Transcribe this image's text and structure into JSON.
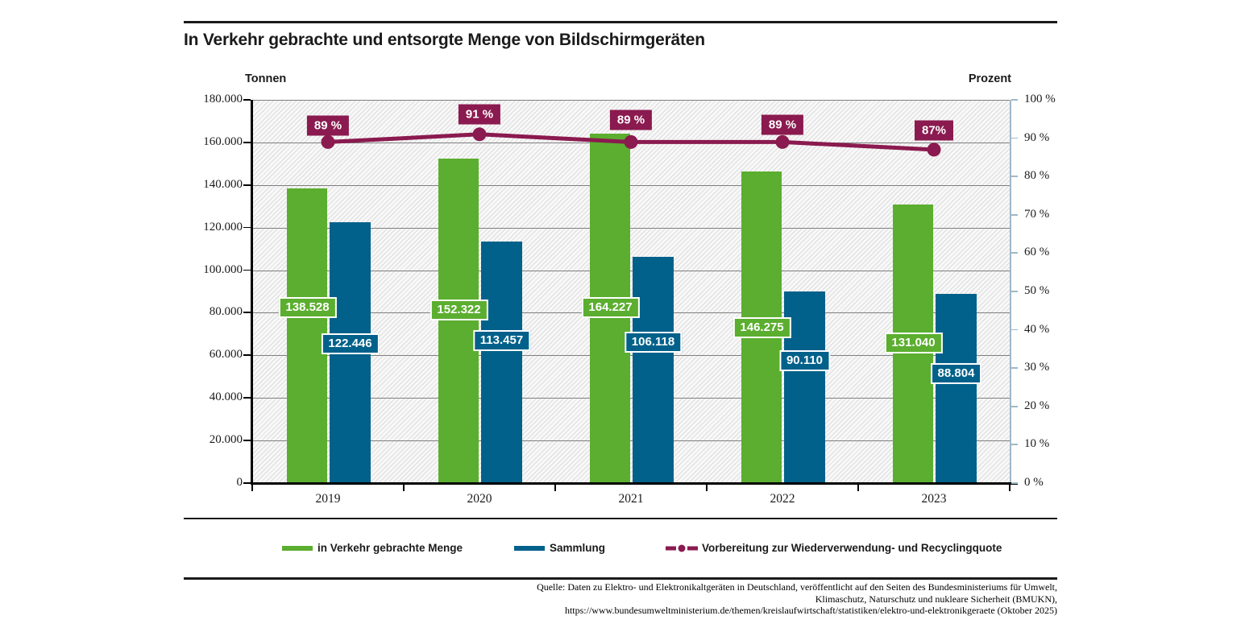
{
  "title": "In Verkehr gebrachte und entsorgte Menge von Bildschirmgeräten",
  "left_axis_title": "Tonnen",
  "right_axis_title": "Prozent",
  "colors": {
    "green": "#5BAE2F",
    "blue": "#02618A",
    "maroon": "#8A1A4F",
    "grid": "#7f7f7f",
    "right_axis": "#9FB8C8",
    "axis_black": "#000000"
  },
  "chart_data": {
    "type": "bar+line combo",
    "categories": [
      "2019",
      "2020",
      "2021",
      "2022",
      "2023"
    ],
    "series": [
      {
        "name": "in Verkehr gebrachte Menge",
        "type": "bar",
        "color_key": "green",
        "values": [
          138528,
          152322,
          164227,
          146275,
          131040
        ],
        "labels": [
          "138.528",
          "152.322",
          "164.227",
          "146.275",
          "131.040"
        ]
      },
      {
        "name": "Sammlung",
        "type": "bar",
        "color_key": "blue",
        "values": [
          122446,
          113457,
          106118,
          90110,
          88804
        ],
        "labels": [
          "122.446",
          "113.457",
          "106.118",
          "90.110",
          "88.804"
        ]
      },
      {
        "name": "Vorbereitung zur Wiederverwendung- und Recyclingquote",
        "type": "line",
        "color_key": "maroon",
        "values": [
          89,
          91,
          89,
          89,
          87
        ],
        "labels": [
          "89 %",
          "91 %",
          "89 %",
          "89 %",
          "87%"
        ]
      }
    ],
    "y_left": {
      "label": "Tonnen",
      "min": 0,
      "max": 180000,
      "step": 20000,
      "tick_values": [
        180000,
        160000,
        140000,
        120000,
        100000,
        80000,
        60000,
        40000,
        20000,
        0
      ],
      "tick_labels": [
        "180.000",
        "160.000",
        "140.000",
        "120.000",
        "100.000",
        "80.000",
        "60.000",
        "40.000",
        "20.000",
        "0"
      ]
    },
    "y_right": {
      "label": "Prozent",
      "min": 0,
      "max": 100,
      "step": 10,
      "tick_values": [
        100,
        90,
        80,
        70,
        60,
        50,
        40,
        30,
        20,
        10,
        0
      ],
      "tick_labels": [
        "100 %",
        "90 %",
        "80 %",
        "70 %",
        "60 %",
        "50 %",
        "40 %",
        "30 %",
        "20 %",
        "10 %",
        "0 %"
      ]
    },
    "grid": true,
    "legend_position": "bottom"
  },
  "legend": {
    "items": [
      {
        "label": "in Verkehr gebrachte Menge",
        "swatch": "green-rect"
      },
      {
        "label": "Sammlung",
        "swatch": "blue-rect"
      },
      {
        "label": "Vorbereitung zur Wiederverwendung- und Recyclingquote",
        "swatch": "maroon-line-dot"
      }
    ]
  },
  "source": {
    "line1": "Quelle: Daten zu Elektro- und Elektronikaltgeräten in Deutschland, veröffentlicht auf den Seiten des Bundesministeriums für Umwelt,",
    "line2": "Klimaschutz, Naturschutz und nukleare Sicherheit (BMUKN),",
    "line3": "https://www.bundesumweltministerium.de/themen/kreislaufwirtschaft/statistiken/elektro-und-elektronikgeraete (Oktober 2025)"
  }
}
